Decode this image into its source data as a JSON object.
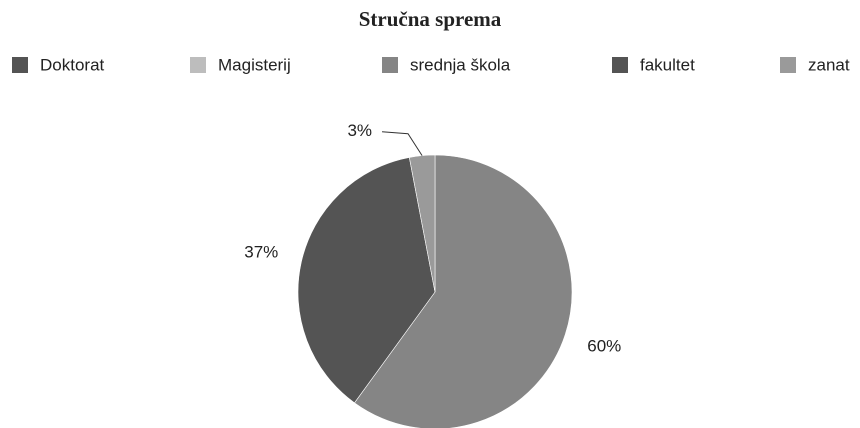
{
  "chart_data": {
    "type": "pie",
    "title": "Stručna sprema",
    "categories": [
      "Doktorat",
      "Magisterij",
      "srednja škola",
      "fakultet",
      "zanat"
    ],
    "values": [
      0,
      0,
      60,
      37,
      3
    ],
    "value_labels": [
      null,
      null,
      "60%",
      "37%",
      "3%"
    ],
    "colors": [
      "#545454",
      "#bdbdbd",
      "#858585",
      "#545454",
      "#9a9a9a"
    ],
    "legend": "top"
  }
}
